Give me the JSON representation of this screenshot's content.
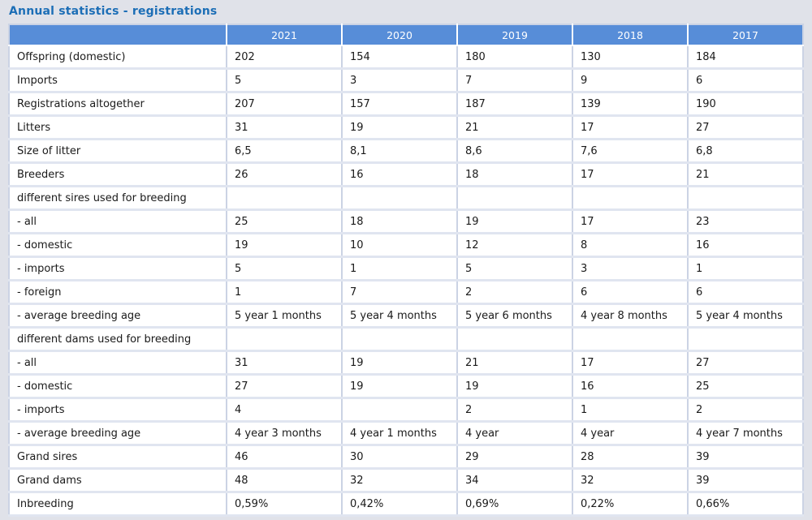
{
  "page": {
    "title": "Annual statistics - registrations"
  },
  "colors": {
    "page_background": "#e0e2e9",
    "title_text": "#1c6eb6",
    "header_background": "#578dd8",
    "header_text": "#ffffff",
    "cell_background": "#ffffff",
    "vertical_border": "#cbd3e4",
    "horizontal_border": "#e0e5f0",
    "body_text": "#1a1a1a"
  },
  "table": {
    "columns": [
      "2021",
      "2020",
      "2019",
      "2018",
      "2017"
    ],
    "rows": [
      {
        "label": "Offspring (domestic)",
        "values": [
          "202",
          "154",
          "180",
          "130",
          "184"
        ]
      },
      {
        "label": "Imports",
        "values": [
          "5",
          "3",
          "7",
          "9",
          "6"
        ]
      },
      {
        "label": "Registrations altogether",
        "values": [
          "207",
          "157",
          "187",
          "139",
          "190"
        ]
      },
      {
        "label": "Litters",
        "values": [
          "31",
          "19",
          "21",
          "17",
          "27"
        ]
      },
      {
        "label": "Size of litter",
        "values": [
          "6,5",
          "8,1",
          "8,6",
          "7,6",
          "6,8"
        ]
      },
      {
        "label": "Breeders",
        "values": [
          "26",
          "16",
          "18",
          "17",
          "21"
        ]
      },
      {
        "label": "different sires used for breeding",
        "values": [
          "",
          "",
          "",
          "",
          ""
        ]
      },
      {
        "label": "- all",
        "values": [
          "25",
          "18",
          "19",
          "17",
          "23"
        ]
      },
      {
        "label": "- domestic",
        "values": [
          "19",
          "10",
          "12",
          "8",
          "16"
        ]
      },
      {
        "label": "- imports",
        "values": [
          "5",
          "1",
          "5",
          "3",
          "1"
        ]
      },
      {
        "label": "- foreign",
        "values": [
          "1",
          "7",
          "2",
          "6",
          "6"
        ]
      },
      {
        "label": "- average breeding age",
        "values": [
          "5 year 1 months",
          "5 year 4 months",
          "5 year 6 months",
          "4 year 8 months",
          "5 year 4 months"
        ]
      },
      {
        "label": "different dams used for breeding",
        "values": [
          "",
          "",
          "",
          "",
          ""
        ]
      },
      {
        "label": "- all",
        "values": [
          "31",
          "19",
          "21",
          "17",
          "27"
        ]
      },
      {
        "label": "- domestic",
        "values": [
          "27",
          "19",
          "19",
          "16",
          "25"
        ]
      },
      {
        "label": "- imports",
        "values": [
          "4",
          "",
          "2",
          "1",
          "2"
        ]
      },
      {
        "label": "- average breeding age",
        "values": [
          "4 year 3 months",
          "4 year 1 months",
          "4 year",
          "4 year",
          "4 year 7 months"
        ]
      },
      {
        "label": "Grand sires",
        "values": [
          "46",
          "30",
          "29",
          "28",
          "39"
        ]
      },
      {
        "label": "Grand dams",
        "values": [
          "48",
          "32",
          "34",
          "32",
          "39"
        ]
      },
      {
        "label": "Inbreeding",
        "values": [
          "0,59%",
          "0,42%",
          "0,69%",
          "0,22%",
          "0,66%"
        ]
      }
    ]
  }
}
